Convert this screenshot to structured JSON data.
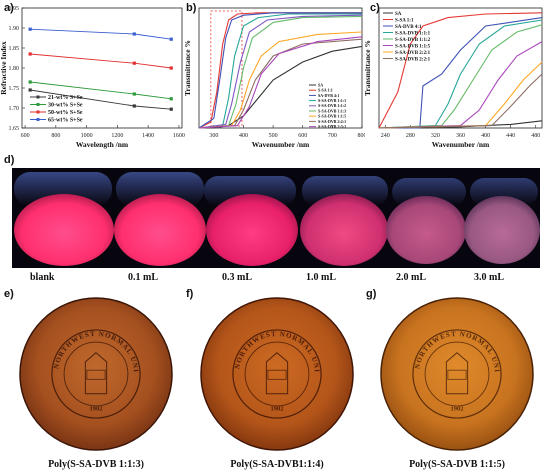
{
  "panels": {
    "a": {
      "label": "a)",
      "xlabel": "Wavelength /nm",
      "ylabel": "Refractive Index",
      "x_ticks": [
        "600",
        "800",
        "1000",
        "1200",
        "1400",
        "1600"
      ],
      "y_ticks": [
        "1.65",
        "1.70",
        "1.75",
        "1.80",
        "1.85",
        "1.90",
        "1.95"
      ],
      "legend": [
        "21-wt%  S+Se",
        "30-wt%  S+Se",
        "50-wt%  S+Se",
        "65-wt%  S+Se"
      ]
    },
    "b": {
      "label": "b)",
      "xlabel": "Wavenumber /nm",
      "ylabel": "Transmittance %",
      "x_ticks": [
        "300",
        "400",
        "500",
        "600",
        "700",
        "800"
      ],
      "legend": [
        "SA",
        "S-SA 1:1",
        "SA-DVB 4:1",
        "S-SA-DVB 1:1:1",
        "S-SA-DVB 1:1:2",
        "S-SA-DVB 1:1:3",
        "S-SA-DVB 1:1:5",
        "S-SA-DVB 2:2:1",
        "S-SA-DVB 2:3:1"
      ]
    },
    "c": {
      "label": "c)",
      "xlabel": "Wavenumber /nm",
      "ylabel": "Transmittance %",
      "x_ticks": [
        "240",
        "280",
        "320",
        "360",
        "400",
        "440",
        "480"
      ],
      "legend": [
        "SA",
        "S-SA 1:1",
        "SA-DVB 4:1",
        "S-SA-DVB 1:1:1",
        "S-SA-DVB 1:1:2",
        "S-SA-DVB 1:1:5",
        "S-SA-DVB 2:2:1",
        "S-SA-DVB 2:2:1"
      ]
    },
    "d": {
      "label": "d)",
      "vials": [
        "blank",
        "0.1 mL",
        "0.3 mL",
        "1.0 mL",
        "2.0 mL",
        "3.0 mL"
      ]
    },
    "e": {
      "label": "e)",
      "caption": "Poly(S-SA-DVB 1:1:3)"
    },
    "f": {
      "label": "f)",
      "caption": "Poly(S-SA-DVB1:1:4)"
    },
    "g": {
      "label": "g)",
      "caption": "Poly(S-SA-DVB 1:1:5)"
    },
    "seal_text": "NORTHWEST NORMAL UNIVERSITY",
    "seal_year": "1902"
  },
  "chart_data": [
    {
      "type": "line",
      "panel": "a",
      "xlabel": "Wavelength /nm",
      "ylabel": "Refractive Index",
      "xlim": [
        580,
        1620
      ],
      "ylim": [
        1.65,
        1.95
      ],
      "series": [
        {
          "name": "21-wt%  S+Se",
          "color": "#3a3a3a",
          "x": [
            633,
            1310,
            1550
          ],
          "y": [
            1.745,
            1.705,
            1.697
          ]
        },
        {
          "name": "30-wt%  S+Se",
          "color": "#2e9b3a",
          "x": [
            633,
            1310,
            1550
          ],
          "y": [
            1.765,
            1.735,
            1.723
          ]
        },
        {
          "name": "50-wt%  S+Se",
          "color": "#e03030",
          "x": [
            633,
            1310,
            1550
          ],
          "y": [
            1.835,
            1.812,
            1.8
          ]
        },
        {
          "name": "65-wt%  S+Se",
          "color": "#3a5fd0",
          "x": [
            633,
            1310,
            1550
          ],
          "y": [
            1.897,
            1.885,
            1.872
          ]
        }
      ]
    },
    {
      "type": "line",
      "panel": "b",
      "xlabel": "Wavenumber /nm",
      "ylabel": "Transmittance %",
      "xlim": [
        250,
        800
      ],
      "ylim": [
        0,
        100
      ],
      "series": [
        {
          "name": "SA",
          "color": "#333333",
          "x": [
            250,
            300,
            350,
            400,
            450,
            500,
            600,
            700,
            800
          ],
          "y": [
            0,
            0,
            2,
            10,
            25,
            40,
            55,
            64,
            68
          ]
        },
        {
          "name": "S-SA 1:1",
          "color": "#e53935",
          "x": [
            250,
            290,
            310,
            330,
            350,
            380,
            450,
            600,
            800
          ],
          "y": [
            0,
            5,
            30,
            70,
            90,
            95,
            96,
            96,
            96
          ]
        },
        {
          "name": "SA-DVB 4:1",
          "color": "#3f51b5",
          "x": [
            250,
            300,
            320,
            340,
            360,
            400,
            500,
            800
          ],
          "y": [
            0,
            8,
            40,
            75,
            90,
            94,
            96,
            96
          ]
        },
        {
          "name": "S-SA-DVB 1:1:1",
          "color": "#26a69a",
          "x": [
            250,
            330,
            350,
            370,
            400,
            450,
            550,
            800
          ],
          "y": [
            0,
            2,
            25,
            60,
            85,
            92,
            95,
            95
          ]
        },
        {
          "name": "S-SA-DVB 1:1:2",
          "color": "#7e57c2",
          "x": [
            250,
            340,
            360,
            390,
            420,
            480,
            600,
            800
          ],
          "y": [
            0,
            3,
            20,
            55,
            80,
            90,
            93,
            94
          ]
        },
        {
          "name": "S-SA-DVB 1:1:3",
          "color": "#66bb6a",
          "x": [
            250,
            350,
            375,
            400,
            430,
            500,
            600,
            800
          ],
          "y": [
            0,
            2,
            20,
            50,
            75,
            88,
            92,
            93
          ]
        },
        {
          "name": "S-SA-DVB 1:1:5",
          "color": "#ffa726",
          "x": [
            250,
            360,
            390,
            420,
            460,
            520,
            650,
            800
          ],
          "y": [
            0,
            2,
            15,
            40,
            60,
            72,
            78,
            80
          ]
        },
        {
          "name": "S-SA-DVB 2:2:1",
          "color": "#8d6e63",
          "x": [
            250,
            370,
            400,
            440,
            500,
            600,
            800
          ],
          "y": [
            0,
            2,
            15,
            40,
            60,
            70,
            74
          ]
        },
        {
          "name": "S-SA-DVB 2:3:1",
          "color": "#ab47bc",
          "x": [
            250,
            380,
            420,
            460,
            520,
            650,
            800
          ],
          "y": [
            0,
            2,
            18,
            45,
            62,
            72,
            76
          ]
        }
      ]
    },
    {
      "type": "line",
      "panel": "c",
      "xlabel": "Wavenumber /nm",
      "ylabel": "Transmittance %",
      "xlim": [
        230,
        490
      ],
      "ylim": [
        0,
        100
      ],
      "series": [
        {
          "name": "SA",
          "color": "#333333",
          "x": [
            230,
            300,
            360,
            400,
            440,
            490
          ],
          "y": [
            0,
            0,
            1,
            2,
            3,
            6
          ]
        },
        {
          "name": "S-SA 1:1",
          "color": "#e53935",
          "x": [
            230,
            260,
            280,
            300,
            340,
            400,
            490
          ],
          "y": [
            0,
            30,
            70,
            85,
            92,
            95,
            96
          ]
        },
        {
          "name": "SA-DVB 4:1",
          "color": "#3f51b5",
          "x": [
            230,
            295,
            300,
            330,
            360,
            400,
            490
          ],
          "y": [
            0,
            0,
            35,
            45,
            65,
            85,
            92
          ]
        },
        {
          "name": "S-SA-DVB 1:1:1",
          "color": "#26a69a",
          "x": [
            230,
            320,
            340,
            360,
            390,
            430,
            490
          ],
          "y": [
            0,
            2,
            20,
            45,
            70,
            85,
            90
          ]
        },
        {
          "name": "S-SA-DVB 1:1:2",
          "color": "#66bb6a",
          "x": [
            230,
            330,
            350,
            380,
            410,
            450,
            490
          ],
          "y": [
            0,
            2,
            15,
            40,
            65,
            80,
            86
          ]
        },
        {
          "name": "S-SA-DVB 1:1:5",
          "color": "#ab47bc",
          "x": [
            230,
            360,
            390,
            420,
            450,
            490
          ],
          "y": [
            0,
            2,
            15,
            40,
            60,
            72
          ]
        },
        {
          "name": "S-SA-DVB 2:2:1",
          "color": "#ffa726",
          "x": [
            230,
            400,
            430,
            460,
            490
          ],
          "y": [
            0,
            2,
            20,
            40,
            55
          ]
        },
        {
          "name": "S-SA-DVB 2:2:1",
          "color": "#8d6e63",
          "x": [
            230,
            410,
            440,
            470,
            490
          ],
          "y": [
            0,
            2,
            18,
            35,
            45
          ]
        }
      ]
    }
  ]
}
